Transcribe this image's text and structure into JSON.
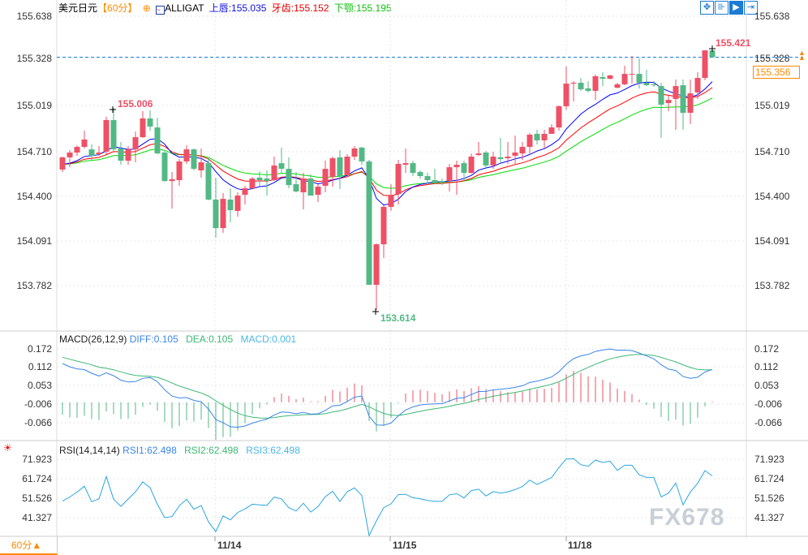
{
  "header": {
    "symbol": "美元日元",
    "period": "【60分】",
    "indicator": "ALLIGAT",
    "lips": "上唇:155.035",
    "teeth": "牙齿:155.152",
    "jaw": "下颚:155.195"
  },
  "toolbar": {
    "icons": [
      "crosshair-icon",
      "range-icon",
      "pan-icon",
      "scroll-end-icon"
    ]
  },
  "colors": {
    "up": "#ee5066",
    "down": "#52b985",
    "lips": "#0000ff",
    "teeth": "#ff0000",
    "jaw": "#00dd00",
    "diff": "#3a86e8",
    "dea": "#3cb874",
    "rsi": "#2aa7e0",
    "accent": "#ff8a00"
  },
  "price_axis": {
    "ticks": [
      "155.638",
      "155.328",
      "155.019",
      "154.710",
      "154.400",
      "154.091",
      "153.782"
    ],
    "current": "155.356"
  },
  "markers": {
    "high": "155.006",
    "low": "153.614",
    "last_high": "155.421"
  },
  "macd": {
    "title": "MACD(26,12,9)",
    "diff": "DIFF:0.105",
    "dea": "DEA:0.105",
    "macd": "MACD:0.001",
    "ticks": [
      "0.172",
      "0.112",
      "0.053",
      "-0.006",
      "-0.066"
    ]
  },
  "rsi": {
    "title": "RSI(14,14,14)",
    "rsi1": "RSI1:62.498",
    "rsi2": "RSI2:62.498",
    "rsi3": "RSI3:62.498",
    "ticks": [
      "71.923",
      "61.724",
      "51.526",
      "41.327"
    ]
  },
  "x_axis": {
    "dates": [
      "11/14",
      "11/15",
      "11/18"
    ],
    "period_button": "60分▲"
  },
  "watermark": "FX678",
  "chart_data": {
    "type": "candlestick",
    "ylim": [
      153.6,
      155.65
    ],
    "candles": [
      [
        154.582,
        154.671,
        154.565,
        154.666
      ],
      [
        154.666,
        154.716,
        154.598,
        154.699
      ],
      [
        154.699,
        154.749,
        154.677,
        154.738
      ],
      [
        154.738,
        154.85,
        154.727,
        154.789
      ],
      [
        154.721,
        154.755,
        154.643,
        154.677
      ],
      [
        154.688,
        154.744,
        154.677,
        154.699
      ],
      [
        154.705,
        154.945,
        154.688,
        154.923
      ],
      [
        154.923,
        155.006,
        154.705,
        154.721
      ],
      [
        154.727,
        154.772,
        154.615,
        154.643
      ],
      [
        154.643,
        154.744,
        154.615,
        154.721
      ],
      [
        154.721,
        154.844,
        154.632,
        154.805
      ],
      [
        154.805,
        154.984,
        154.8,
        154.934
      ],
      [
        154.934,
        154.99,
        154.85,
        154.878
      ],
      [
        154.872,
        154.939,
        154.688,
        154.693
      ],
      [
        154.699,
        154.716,
        154.498,
        154.503
      ],
      [
        154.503,
        154.565,
        154.313,
        154.515
      ],
      [
        154.509,
        154.654,
        154.47,
        154.638
      ],
      [
        154.638,
        154.749,
        154.621,
        154.721
      ],
      [
        154.721,
        154.727,
        154.576,
        154.587
      ],
      [
        154.576,
        154.727,
        154.526,
        154.632
      ],
      [
        154.626,
        154.666,
        154.369,
        154.375
      ],
      [
        154.375,
        154.526,
        154.112,
        154.179
      ],
      [
        154.179,
        154.42,
        154.146,
        154.38
      ],
      [
        154.375,
        154.453,
        154.218,
        154.302
      ],
      [
        154.297,
        154.425,
        154.257,
        154.403
      ],
      [
        154.408,
        154.47,
        154.341,
        154.453
      ],
      [
        154.453,
        154.531,
        154.448,
        154.52
      ],
      [
        154.526,
        154.57,
        154.47,
        154.509
      ],
      [
        154.52,
        154.576,
        154.403,
        154.503
      ],
      [
        154.509,
        154.671,
        154.503,
        154.61
      ],
      [
        154.626,
        154.733,
        154.559,
        154.587
      ],
      [
        154.587,
        154.666,
        154.453,
        154.475
      ],
      [
        154.481,
        154.565,
        154.425,
        154.431
      ],
      [
        154.425,
        154.559,
        154.308,
        154.52
      ],
      [
        154.52,
        154.548,
        154.403,
        154.403
      ],
      [
        154.408,
        154.481,
        154.358,
        154.464
      ],
      [
        154.47,
        154.643,
        154.425,
        154.587
      ],
      [
        154.531,
        154.671,
        154.464,
        154.66
      ],
      [
        154.666,
        154.716,
        154.448,
        154.537
      ],
      [
        154.543,
        154.688,
        154.543,
        154.671
      ],
      [
        154.671,
        154.744,
        154.649,
        154.727
      ],
      [
        154.733,
        154.738,
        154.615,
        154.638
      ],
      [
        154.638,
        154.649,
        153.788,
        153.788
      ],
      [
        153.788,
        154.073,
        153.614,
        154.067
      ],
      [
        154.067,
        154.336,
        153.972,
        154.325
      ],
      [
        154.325,
        154.481,
        154.297,
        154.408
      ],
      [
        154.414,
        154.649,
        154.341,
        154.621
      ],
      [
        154.615,
        154.727,
        154.559,
        154.626
      ],
      [
        154.626,
        154.643,
        154.537,
        154.559
      ],
      [
        154.565,
        154.576,
        154.52,
        154.537
      ],
      [
        154.537,
        154.559,
        154.487,
        154.509
      ],
      [
        154.509,
        154.587,
        154.481,
        154.492
      ],
      [
        154.503,
        154.52,
        154.475,
        154.492
      ],
      [
        154.503,
        154.621,
        154.431,
        154.598
      ],
      [
        154.598,
        154.643,
        154.408,
        154.615
      ],
      [
        154.626,
        154.643,
        154.503,
        154.559
      ],
      [
        154.559,
        154.693,
        154.554,
        154.671
      ],
      [
        154.682,
        154.772,
        154.677,
        154.693
      ],
      [
        154.699,
        154.71,
        154.593,
        154.61
      ],
      [
        154.61,
        154.705,
        154.587,
        154.671
      ],
      [
        154.666,
        154.8,
        154.632,
        154.654
      ],
      [
        154.66,
        154.772,
        154.621,
        154.671
      ],
      [
        154.677,
        154.816,
        154.621,
        154.699
      ],
      [
        154.693,
        154.772,
        154.649,
        154.738
      ],
      [
        154.738,
        154.833,
        154.693,
        154.822
      ],
      [
        154.828,
        154.856,
        154.755,
        154.783
      ],
      [
        154.783,
        154.856,
        154.727,
        154.828
      ],
      [
        154.828,
        154.895,
        154.828,
        154.872
      ],
      [
        154.872,
        155.023,
        154.85,
        155.018
      ],
      [
        155.018,
        155.292,
        154.995,
        155.174
      ],
      [
        155.174,
        155.191,
        155.051,
        155.18
      ],
      [
        155.18,
        155.213,
        155.124,
        155.135
      ],
      [
        155.141,
        155.191,
        155.113,
        155.124
      ],
      [
        155.124,
        155.236,
        155.062,
        155.225
      ],
      [
        155.219,
        155.252,
        155.157,
        155.208
      ],
      [
        155.208,
        155.236,
        155.202,
        155.23
      ],
      [
        155.146,
        155.18,
        155.141,
        155.169
      ],
      [
        155.169,
        155.297,
        155.163,
        155.241
      ],
      [
        155.236,
        155.364,
        155.174,
        155.241
      ],
      [
        155.241,
        155.348,
        155.141,
        155.18
      ],
      [
        155.18,
        155.269,
        155.157,
        155.163
      ],
      [
        155.169,
        155.191,
        155.152,
        155.163
      ],
      [
        155.157,
        155.18,
        154.8,
        155.029
      ],
      [
        155.04,
        155.09,
        154.984,
        155.062
      ],
      [
        155.068,
        155.202,
        154.856,
        155.157
      ],
      [
        155.163,
        155.202,
        154.856,
        154.973
      ],
      [
        154.973,
        155.202,
        154.895,
        155.107
      ],
      [
        155.113,
        155.252,
        155.068,
        155.213
      ],
      [
        155.213,
        155.403,
        155.197,
        155.403
      ],
      [
        155.403,
        155.421,
        155.356,
        155.356
      ]
    ]
  }
}
